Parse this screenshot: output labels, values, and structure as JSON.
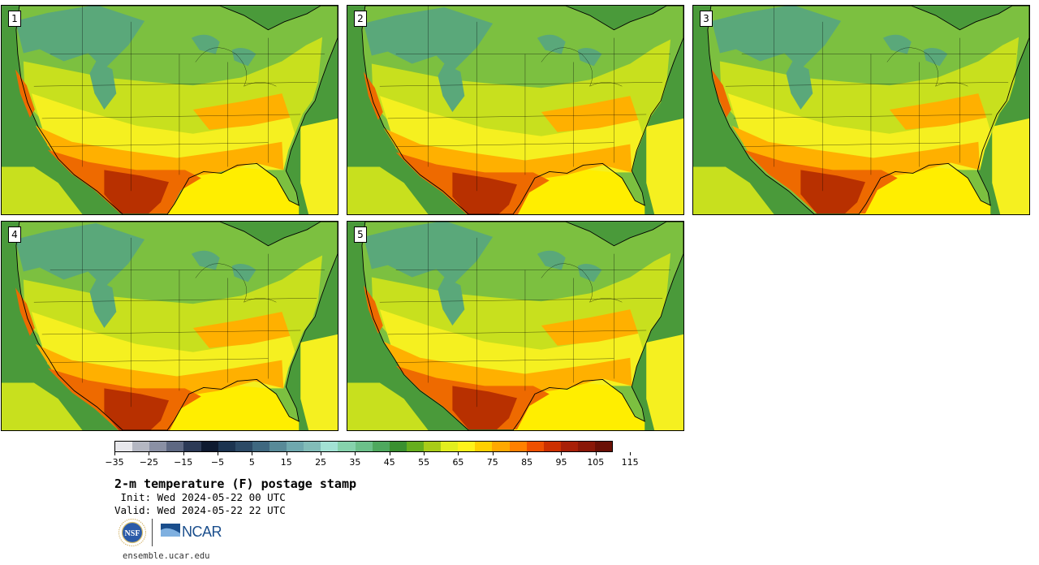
{
  "panels": [
    {
      "label": "1"
    },
    {
      "label": "2"
    },
    {
      "label": "3"
    },
    {
      "label": "4"
    },
    {
      "label": "5"
    }
  ],
  "colorbar": {
    "colors": [
      "#e8e8ec",
      "#b4b7c2",
      "#8a90a4",
      "#5e6882",
      "#2c3a56",
      "#0e1a30",
      "#1c3450",
      "#2c4a66",
      "#3f6880",
      "#588a98",
      "#6fa8ae",
      "#82bcb8",
      "#a2e2d4",
      "#86d2ac",
      "#6cc08a",
      "#4ea85e",
      "#3a9030",
      "#66ae1e",
      "#a8cc18",
      "#e2ee1e",
      "#fff21a",
      "#ffd000",
      "#ffa800",
      "#ff8000",
      "#ee5000",
      "#cc3000",
      "#a82008",
      "#8a1808",
      "#6a1006"
    ],
    "tick_labels": [
      "−35",
      "−25",
      "−15",
      "−5",
      "5",
      "15",
      "25",
      "35",
      "45",
      "55",
      "65",
      "75",
      "85",
      "95",
      "105",
      "115"
    ]
  },
  "title": "2-m temperature (F) postage stamp",
  "init": " Init: Wed 2024-05-22 00 UTC",
  "valid": "Valid: Wed 2024-05-22 22 UTC",
  "logos": {
    "nsf": "NSF",
    "ncar": "NCAR"
  },
  "site": "ensemble.ucar.edu",
  "map_colors": {
    "ocean_atlantic": "#4a9a3a",
    "ocean_pacific": "#4a9a3a",
    "gulf": "#ffee00",
    "cold": "#5aa87a",
    "cool": "#7cc040",
    "mild": "#c8e01e",
    "warm": "#f5f020",
    "hot": "#ffb000",
    "hotter": "#ee6a00",
    "hottest": "#b83000",
    "border": "#000000"
  }
}
